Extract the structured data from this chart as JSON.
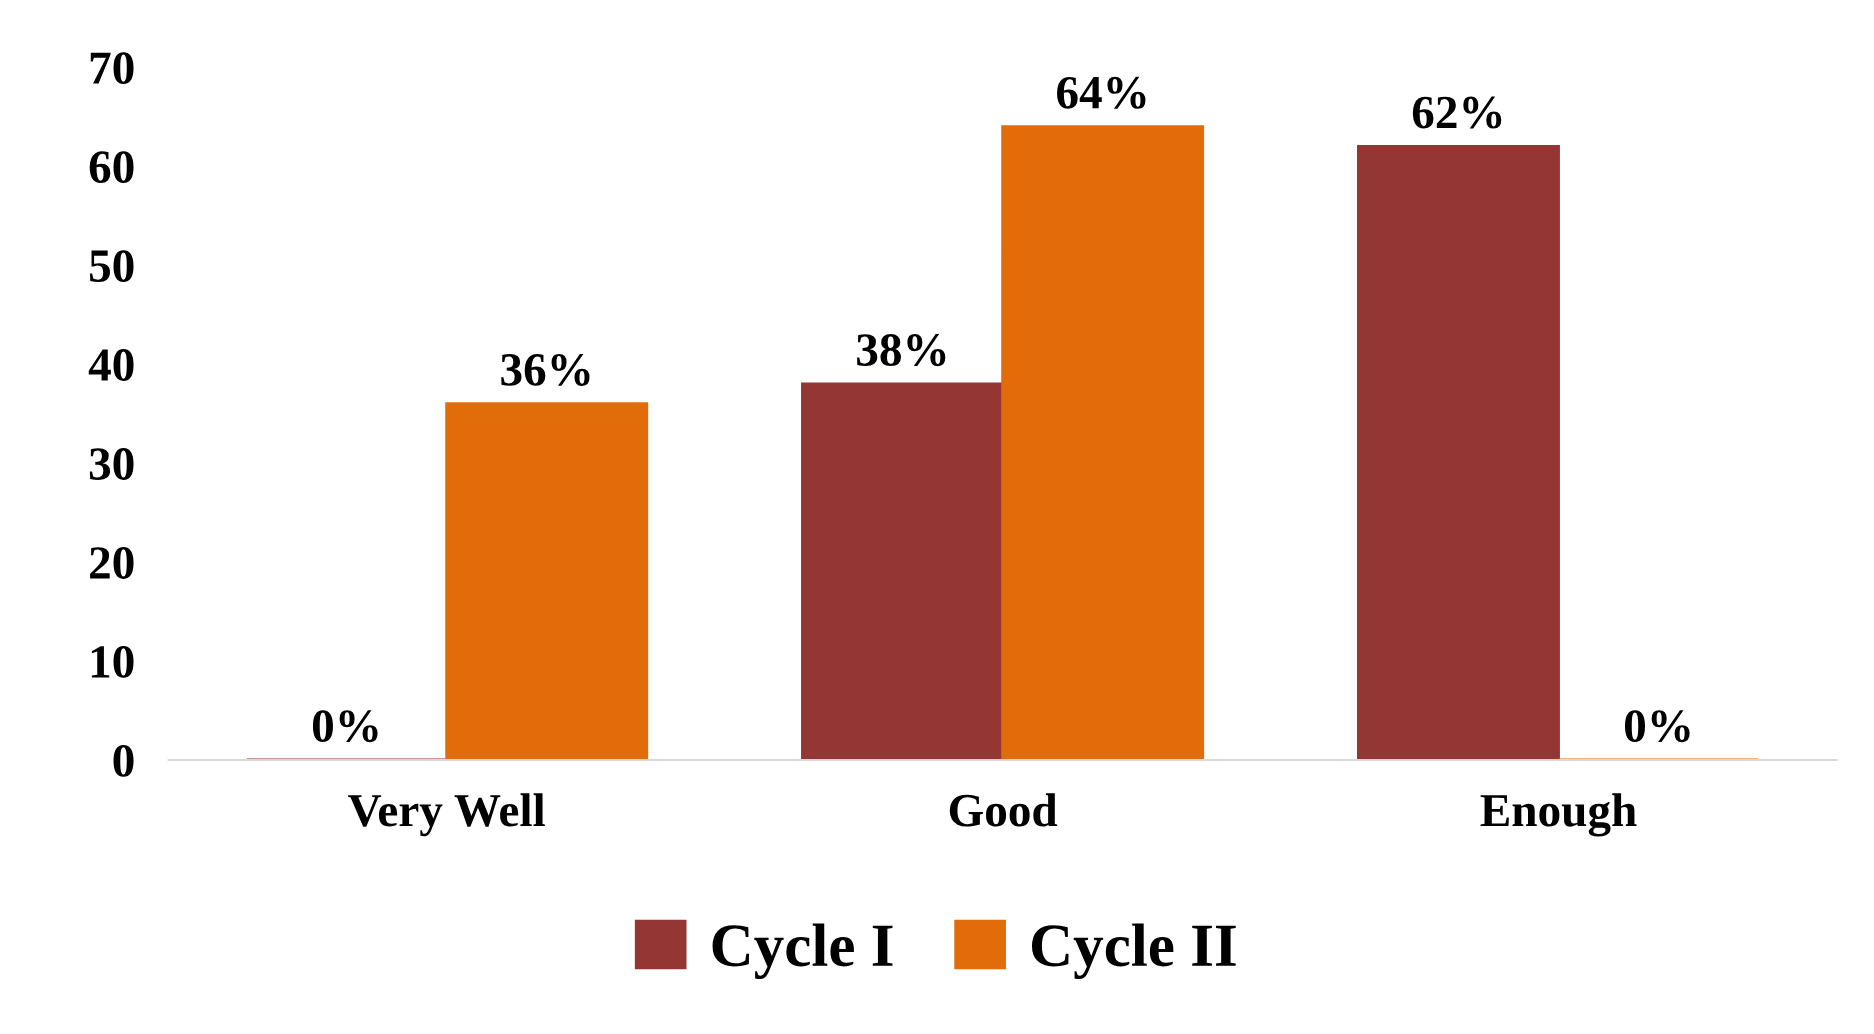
{
  "chart_data": {
    "type": "bar",
    "categories": [
      "Very Well",
      "Good",
      "Enough"
    ],
    "series": [
      {
        "name": "Cycle I",
        "color": "#943634",
        "values": [
          0,
          38,
          62
        ],
        "value_labels": [
          "0%",
          "38%",
          "62%"
        ]
      },
      {
        "name": "Cycle II",
        "color": "#e36c0a",
        "values": [
          36,
          64,
          0
        ],
        "value_labels": [
          "36%",
          "64%",
          "0%"
        ]
      }
    ],
    "ylim": [
      0,
      70
    ],
    "yticks": [
      0,
      10,
      20,
      30,
      40,
      50,
      60,
      70
    ],
    "grid": false,
    "legend": "bottom"
  }
}
